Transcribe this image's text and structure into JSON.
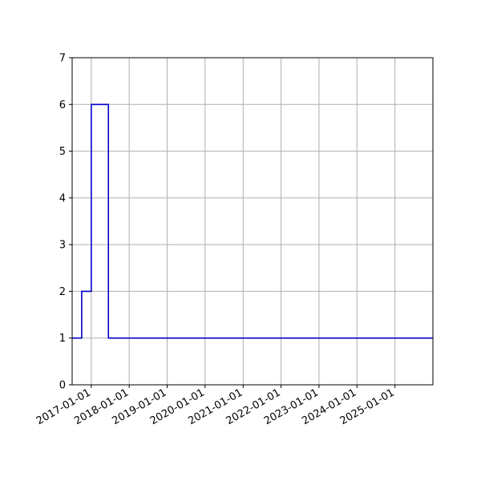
{
  "chart_data": {
    "type": "line",
    "drawstyle": "steps-post",
    "title": "",
    "xlabel": "",
    "ylabel": "",
    "grid": true,
    "xlim": [
      "2016-07-01",
      "2026-01-01"
    ],
    "ylim": [
      0,
      7
    ],
    "y_ticks": [
      0,
      1,
      2,
      3,
      4,
      5,
      6,
      7
    ],
    "x_ticks": [
      "2017-01-01",
      "2018-01-01",
      "2019-01-01",
      "2020-01-01",
      "2021-01-01",
      "2022-01-01",
      "2023-01-01",
      "2024-01-01",
      "2025-01-01"
    ],
    "series": [
      {
        "color": "#0000cc",
        "points": [
          {
            "x": "2016-07-01",
            "y": 1
          },
          {
            "x": "2016-10-01",
            "y": 2
          },
          {
            "x": "2017-01-01",
            "y": 6
          },
          {
            "x": "2017-06-15",
            "y": 1
          },
          {
            "x": "2026-01-01",
            "y": 1
          }
        ]
      }
    ]
  }
}
